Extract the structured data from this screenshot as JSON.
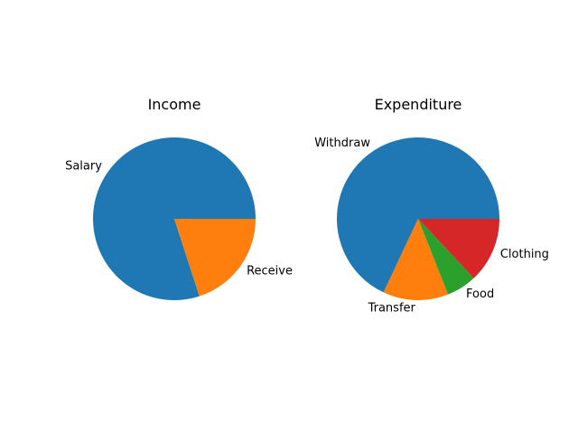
{
  "chart_data": [
    {
      "type": "pie",
      "title": "Income",
      "start_angle": 0,
      "direction": "counterclockwise",
      "slices": [
        {
          "label": "Salary",
          "value": 80,
          "color": "#1f77b4"
        },
        {
          "label": "Receive",
          "value": 20,
          "color": "#ff7f0e"
        }
      ]
    },
    {
      "type": "pie",
      "title": "Expenditure",
      "start_angle": 0,
      "direction": "counterclockwise",
      "slices": [
        {
          "label": "Withdraw",
          "value": 68,
          "color": "#1f77b4"
        },
        {
          "label": "Transfer",
          "value": 13,
          "color": "#ff7f0e"
        },
        {
          "label": "Food",
          "value": 6,
          "color": "#2ca02c"
        },
        {
          "label": "Clothing",
          "value": 13,
          "color": "#d62728"
        }
      ]
    }
  ]
}
